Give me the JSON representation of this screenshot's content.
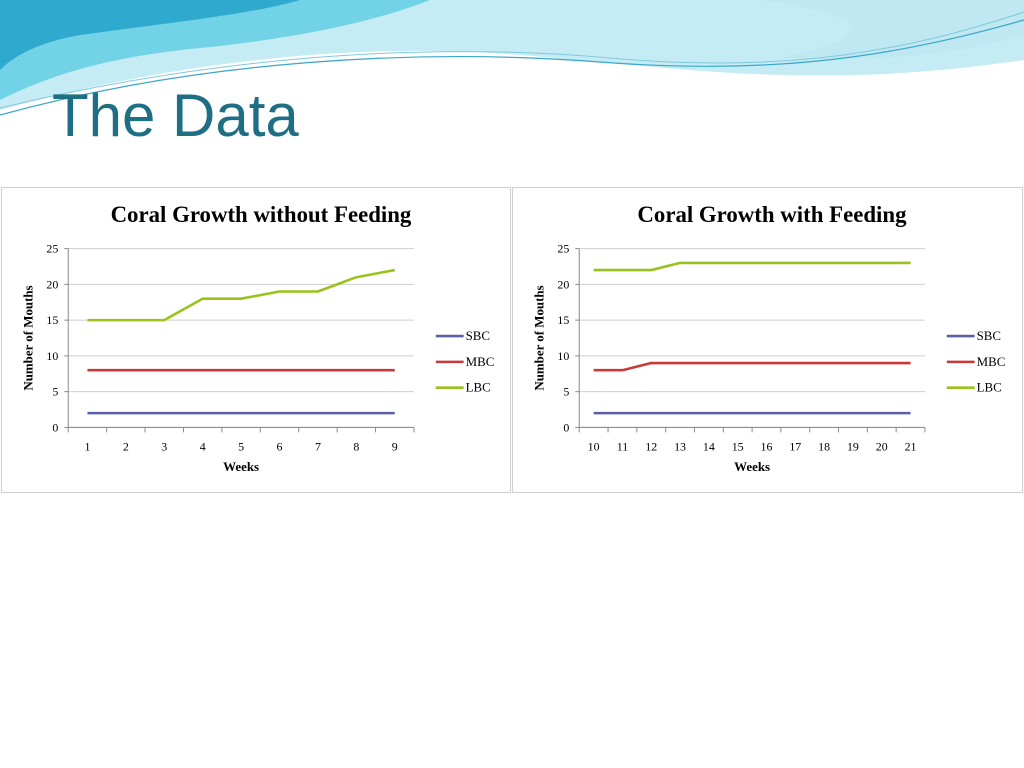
{
  "slide": {
    "title": "The Data",
    "colors": {
      "title": "#1f6f84",
      "wave_light": "#bfe9f2",
      "wave_mid": "#6fd0e3",
      "wave_dark": "#2aa9cc"
    }
  },
  "chart_data": [
    {
      "type": "line",
      "title": "Coral Growth without Feeding",
      "xlabel": "Weeks",
      "ylabel": "Number of Mouths",
      "categories": [
        "1",
        "2",
        "3",
        "4",
        "5",
        "6",
        "7",
        "8",
        "9"
      ],
      "ylim": [
        0,
        25
      ],
      "yticks": [
        0,
        5,
        10,
        15,
        20,
        25
      ],
      "grid": true,
      "legend": "right",
      "series": [
        {
          "name": "SBC",
          "color": "#5b5fa6",
          "values": [
            2,
            2,
            2,
            2,
            2,
            2,
            2,
            2,
            2
          ]
        },
        {
          "name": "MBC",
          "color": "#c83a3a",
          "values": [
            8,
            8,
            8,
            8,
            8,
            8,
            8,
            8,
            8
          ]
        },
        {
          "name": "LBC",
          "color": "#99c31c",
          "values": [
            15,
            15,
            15,
            18,
            18,
            19,
            19,
            21,
            22
          ]
        }
      ]
    },
    {
      "type": "line",
      "title": "Coral Growth with Feeding",
      "xlabel": "Weeks",
      "ylabel": "Number of Mouths",
      "categories": [
        "10",
        "11",
        "12",
        "13",
        "14",
        "15",
        "16",
        "17",
        "18",
        "19",
        "20",
        "21"
      ],
      "ylim": [
        0,
        25
      ],
      "yticks": [
        0,
        5,
        10,
        15,
        20,
        25
      ],
      "grid": true,
      "legend": "right",
      "series": [
        {
          "name": "SBC",
          "color": "#5b5fa6",
          "values": [
            2,
            2,
            2,
            2,
            2,
            2,
            2,
            2,
            2,
            2,
            2,
            2
          ]
        },
        {
          "name": "MBC",
          "color": "#c83a3a",
          "values": [
            8,
            8,
            9,
            9,
            9,
            9,
            9,
            9,
            9,
            9,
            9,
            9
          ]
        },
        {
          "name": "LBC",
          "color": "#99c31c",
          "values": [
            22,
            22,
            22,
            23,
            23,
            23,
            23,
            23,
            23,
            23,
            23,
            23
          ]
        }
      ]
    }
  ]
}
